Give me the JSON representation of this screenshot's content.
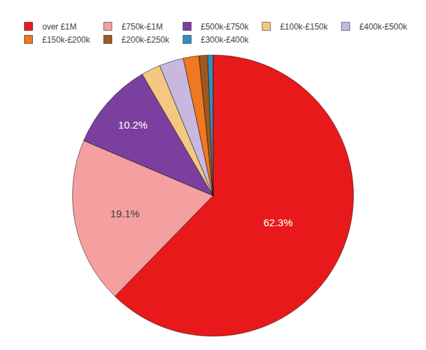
{
  "chart_data": {
    "type": "pie",
    "categories": [
      "over £1M",
      "£750k-£1M",
      "£500k-£750k",
      "£100k-£150k",
      "£400k-£500k",
      "£150k-£200k",
      "£200k-£250k",
      "£300k-£400k"
    ],
    "values": [
      62.3,
      19.1,
      10.2,
      2.2,
      2.8,
      1.8,
      1.0,
      0.6
    ],
    "value_labels": [
      "62.3%",
      "19.1%",
      "10.2%",
      null,
      null,
      null,
      null,
      null
    ],
    "colors": [
      "#e8191a",
      "#f4a0a0",
      "#7b3fa0",
      "#f5c882",
      "#c8b8e0",
      "#f07820",
      "#a05820",
      "#3090c0"
    ],
    "data_labels": true,
    "legend": "top"
  }
}
